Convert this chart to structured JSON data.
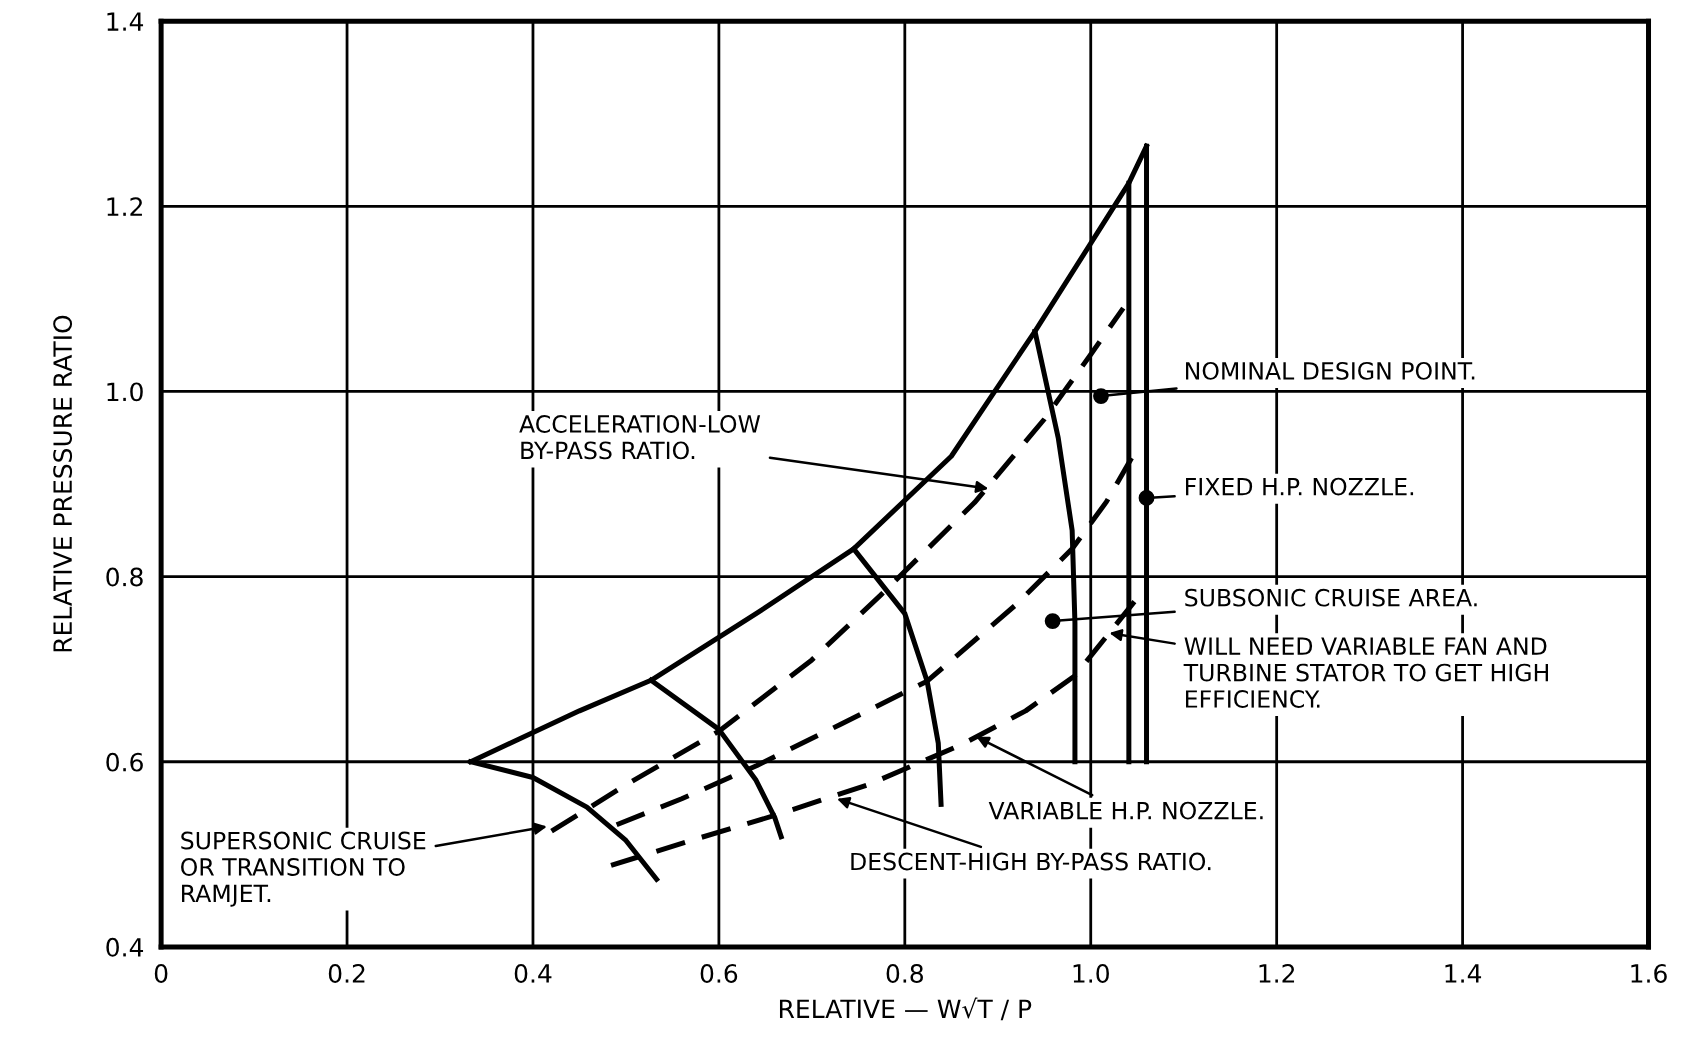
{
  "chart_data": {
    "type": "line",
    "xlabel": "RELATIVE — W√T / P",
    "ylabel": "RELATIVE PRESSURE RATIO",
    "xlim": [
      0,
      1.6
    ],
    "ylim": [
      0.4,
      1.4
    ],
    "xticks": [
      0,
      0.2,
      0.4,
      0.6,
      0.8,
      {
        "value": 1.0,
        "label": "1.0"
      },
      1.2,
      1.4,
      1.6
    ],
    "yticks": [
      0.4,
      0.6,
      0.8,
      {
        "value": 1.0,
        "label": "1.0"
      },
      1.2,
      1.4
    ],
    "grid": true,
    "legend": false,
    "marker": "none",
    "series": [
      {
        "color": "#000000",
        "line_style": "solid",
        "x": [
          0.333,
          0.45,
          0.527,
          0.64,
          0.745,
          0.85,
          0.94,
          1.0,
          1.041,
          1.06
        ],
        "values": [
          0.6,
          0.655,
          0.688,
          0.76,
          0.83,
          0.93,
          1.065,
          1.16,
          1.225,
          1.265
        ]
      },
      {
        "color": "#000000",
        "line_style": "solid",
        "x": [
          0.333,
          0.4,
          0.458,
          0.5,
          0.533
        ],
        "values": [
          0.6,
          0.583,
          0.551,
          0.515,
          0.473
        ]
      },
      {
        "color": "#000000",
        "line_style": "solid",
        "x": [
          0.527,
          0.6,
          0.64,
          0.66,
          0.667
        ],
        "values": [
          0.688,
          0.635,
          0.58,
          0.54,
          0.519
        ]
      },
      {
        "color": "#000000",
        "line_style": "solid",
        "x": [
          0.745,
          0.8,
          0.824,
          0.836,
          0.839
        ],
        "values": [
          0.83,
          0.76,
          0.687,
          0.62,
          0.554
        ]
      },
      {
        "color": "#000000",
        "line_style": "solid",
        "x": [
          0.94,
          0.965,
          0.98,
          0.983,
          0.983
        ],
        "values": [
          1.065,
          0.95,
          0.85,
          0.75,
          0.6
        ]
      },
      {
        "color": "#000000",
        "line_style": "solid",
        "x": [
          1.041,
          1.041
        ],
        "values": [
          1.225,
          0.6
        ]
      },
      {
        "color": "#000000",
        "line_style": "solid",
        "x": [
          1.06,
          1.06
        ],
        "values": [
          1.265,
          0.6
        ]
      },
      {
        "color": "#000000",
        "line_style": "dashed",
        "x": [
          0.42,
          0.5,
          0.6,
          0.7,
          0.774,
          0.875,
          0.95,
          1.0,
          1.035
        ],
        "values": [
          0.525,
          0.575,
          0.633,
          0.71,
          0.78,
          0.88,
          0.97,
          1.04,
          1.09
        ]
      },
      {
        "color": "#000000",
        "line_style": "dashed",
        "x": [
          0.49,
          0.56,
          0.641,
          0.73,
          0.824,
          0.92,
          0.98,
          1.017,
          1.045
        ],
        "values": [
          0.532,
          0.56,
          0.596,
          0.64,
          0.687,
          0.77,
          0.83,
          0.881,
          0.93
        ]
      },
      {
        "color": "#000000",
        "line_style": "dashed",
        "x": [
          0.484,
          0.57,
          0.66,
          0.76,
          0.86,
          0.93,
          0.983,
          1.047
        ],
        "values": [
          0.488,
          0.515,
          0.542,
          0.575,
          0.618,
          0.655,
          0.693,
          0.773
        ]
      },
      {
        "type": "scatter",
        "marker": "circle",
        "color": "#000000",
        "x": [
          1.011,
          0.959,
          1.06
        ],
        "values": [
          0.995,
          0.752,
          0.885
        ]
      }
    ],
    "annotations": [
      {
        "text": "ACCELERATION-LOW\nBY-PASS RATIO.",
        "x": 0.89,
        "y": 0.895
      },
      {
        "text": "NOMINAL DESIGN POINT.",
        "x": 1.011,
        "y": 0.995
      },
      {
        "text": "FIXED H.P. NOZZLE.",
        "x": 1.06,
        "y": 0.885
      },
      {
        "text": "SUBSONIC CRUISE AREA.",
        "x": 0.959,
        "y": 0.752
      },
      {
        "text": "WILL NEED VARIABLE FAN AND\nTURBINE STATOR TO GET HIGH\nEFFICIENCY.",
        "x": 1.02,
        "y": 0.739
      },
      {
        "text": "VARIABLE H.P. NOZZLE.",
        "x": 0.877,
        "y": 0.627
      },
      {
        "text": "DESCENT-HIGH BY-PASS RATIO.",
        "x": 0.727,
        "y": 0.56
      },
      {
        "text": "SUPERSONIC CRUISE\nOR TRANSITION TO\nRAMJET.",
        "x": 0.415,
        "y": 0.53
      }
    ]
  }
}
